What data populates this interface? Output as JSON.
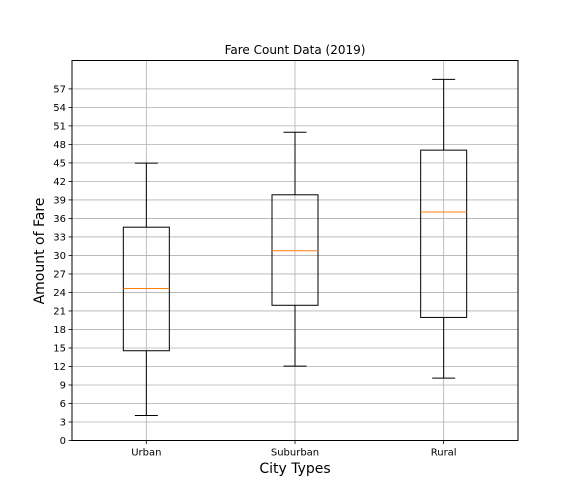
{
  "chart_data": {
    "type": "box",
    "title": "Fare Count Data (2019)",
    "xlabel": "City Types",
    "ylabel": "Amount of Fare",
    "categories": [
      "Urban",
      "Suburban",
      "Rural"
    ],
    "boxes": [
      {
        "name": "Urban",
        "whisker_low": 4.05,
        "q1": 14.55,
        "median": 24.64,
        "q3": 34.58,
        "whisker_high": 44.97
      },
      {
        "name": "Suburban",
        "whisker_low": 12.05,
        "q1": 21.92,
        "median": 30.75,
        "q3": 39.83,
        "whisker_high": 49.96
      },
      {
        "name": "Rural",
        "whisker_low": 10.11,
        "q1": 19.95,
        "median": 37.05,
        "q3": 47.07,
        "whisker_high": 58.55
      }
    ],
    "ylim": [
      0,
      61.6
    ],
    "yticks": [
      0,
      3,
      6,
      9,
      12,
      15,
      18,
      21,
      24,
      27,
      30,
      33,
      36,
      39,
      42,
      45,
      48,
      51,
      54,
      57
    ],
    "grid": true,
    "colors": {
      "box": "#000000",
      "median": "#ff7f0e",
      "grid": "#b0b0b0"
    }
  }
}
